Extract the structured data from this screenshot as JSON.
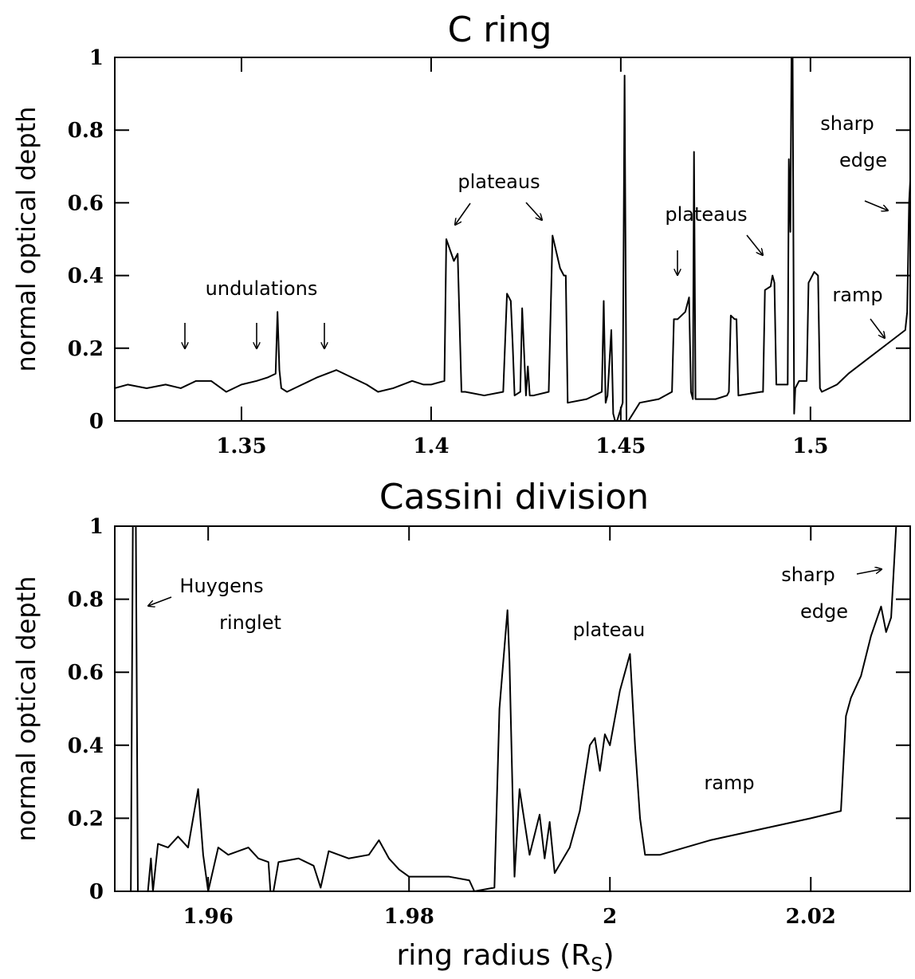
{
  "chart_data": [
    {
      "type": "line",
      "title": "C ring",
      "ylabel": "normal optical depth",
      "xlim": [
        1.3166,
        1.5263
      ],
      "ylim": [
        0,
        1
      ],
      "xticks": [
        1.35,
        1.4,
        1.45,
        1.5
      ],
      "yticks": [
        0,
        0.2,
        0.4,
        0.6,
        0.8,
        1
      ],
      "annotations": [
        "undulations",
        "plateaus",
        "plateaus",
        "ramp",
        "sharp",
        "edge"
      ],
      "series": [
        {
          "color": "#000000",
          "x": [
            1.3166,
            1.32,
            1.325,
            1.33,
            1.334,
            1.338,
            1.342,
            1.346,
            1.35,
            1.354,
            1.357,
            1.359,
            1.3595,
            1.36,
            1.3605,
            1.362,
            1.366,
            1.37,
            1.375,
            1.379,
            1.383,
            1.386,
            1.39,
            1.395,
            1.398,
            1.4,
            1.4035,
            1.404,
            1.406,
            1.407,
            1.408,
            1.409,
            1.414,
            1.419,
            1.42,
            1.421,
            1.4215,
            1.422,
            1.4235,
            1.424,
            1.425,
            1.4255,
            1.426,
            1.427,
            1.431,
            1.432,
            1.434,
            1.435,
            1.4355,
            1.436,
            1.441,
            1.445,
            1.4455,
            1.446,
            1.4465,
            1.4475,
            1.448,
            1.4485,
            1.449,
            1.4505,
            1.451,
            1.4515,
            1.452,
            1.455,
            1.46,
            1.4635,
            1.464,
            1.465,
            1.467,
            1.468,
            1.4685,
            1.469,
            1.4693,
            1.4697,
            1.47,
            1.475,
            1.478,
            1.4785,
            1.479,
            1.48,
            1.4805,
            1.481,
            1.487,
            1.4875,
            1.488,
            1.4895,
            1.49,
            1.4905,
            1.491,
            1.494,
            1.4943,
            1.4947,
            1.495,
            1.4953,
            1.4957,
            1.496,
            1.497,
            1.499,
            1.4995,
            1.5,
            1.501,
            1.502,
            1.5025,
            1.503,
            1.507,
            1.51,
            1.515,
            1.52,
            1.525,
            1.5255,
            1.526,
            1.5263
          ],
          "values": [
            0.09,
            0.1,
            0.09,
            0.1,
            0.09,
            0.11,
            0.11,
            0.08,
            0.1,
            0.11,
            0.12,
            0.13,
            0.3,
            0.14,
            0.09,
            0.08,
            0.1,
            0.12,
            0.14,
            0.12,
            0.1,
            0.08,
            0.09,
            0.11,
            0.1,
            0.1,
            0.11,
            0.5,
            0.44,
            0.46,
            0.08,
            0.08,
            0.07,
            0.08,
            0.35,
            0.33,
            0.21,
            0.07,
            0.08,
            0.31,
            0.07,
            0.15,
            0.07,
            0.07,
            0.08,
            0.51,
            0.42,
            0.4,
            0.4,
            0.05,
            0.06,
            0.08,
            0.33,
            0.05,
            0.07,
            0.25,
            0.02,
            0.0,
            0.0,
            0.05,
            0.95,
            0.0,
            0.0,
            0.05,
            0.06,
            0.08,
            0.28,
            0.28,
            0.3,
            0.34,
            0.08,
            0.06,
            0.74,
            0.06,
            0.06,
            0.06,
            0.07,
            0.08,
            0.29,
            0.28,
            0.28,
            0.07,
            0.08,
            0.08,
            0.36,
            0.37,
            0.4,
            0.38,
            0.1,
            0.1,
            0.72,
            0.52,
            1.0,
            1.0,
            0.02,
            0.09,
            0.11,
            0.11,
            0.38,
            0.39,
            0.41,
            0.4,
            0.09,
            0.08,
            0.1,
            0.13,
            0.17,
            0.21,
            0.25,
            0.3,
            0.6,
            0.66
          ]
        }
      ]
    },
    {
      "type": "line",
      "title": "Cassini division",
      "ylabel": "normal optical depth",
      "xlabel": {
        "text": "ring radius (R",
        "subscript": "S",
        "suffix": ")"
      },
      "xlim": [
        1.9507,
        2.0299
      ],
      "ylim": [
        0,
        1
      ],
      "xticks": [
        1.96,
        1.98,
        2,
        2.02
      ],
      "yticks": [
        0,
        0.2,
        0.4,
        0.6,
        0.8,
        1
      ],
      "annotations": [
        "Huygens",
        "ringlet",
        "plateau",
        "ramp",
        "sharp",
        "edge"
      ],
      "series": [
        {
          "color": "#000000",
          "x": [
            1.9507,
            1.9523,
            1.9525,
            1.9528,
            1.953,
            1.954,
            1.9543,
            1.9545,
            1.955,
            1.956,
            1.957,
            1.958,
            1.959,
            1.9595,
            1.96,
            1.961,
            1.962,
            1.964,
            1.965,
            1.966,
            1.9662,
            1.9665,
            1.967,
            1.969,
            1.9705,
            1.9712,
            1.972,
            1.974,
            1.976,
            1.977,
            1.978,
            1.979,
            1.98,
            1.984,
            1.986,
            1.9865,
            1.9885,
            1.989,
            1.9898,
            1.99,
            1.9905,
            1.991,
            1.992,
            1.993,
            1.9935,
            1.994,
            1.9945,
            1.996,
            1.997,
            1.998,
            1.9985,
            1.999,
            1.9995,
            2.0,
            2.001,
            2.002,
            2.0025,
            2.003,
            2.0035,
            2.005,
            2.01,
            2.015,
            2.02,
            2.023,
            2.0235,
            2.024,
            2.025,
            2.026,
            2.027,
            2.0275,
            2.028,
            2.0285
          ],
          "values": [
            0.0,
            0.0,
            1.0,
            1.0,
            0.0,
            0.0,
            0.09,
            0.0,
            0.13,
            0.12,
            0.15,
            0.12,
            0.28,
            0.1,
            0.0,
            0.12,
            0.1,
            0.12,
            0.09,
            0.08,
            0.0,
            0.0,
            0.08,
            0.09,
            0.07,
            0.01,
            0.11,
            0.09,
            0.1,
            0.14,
            0.09,
            0.06,
            0.04,
            0.04,
            0.03,
            0.0,
            0.01,
            0.5,
            0.77,
            0.63,
            0.04,
            0.28,
            0.1,
            0.21,
            0.09,
            0.19,
            0.05,
            0.12,
            0.22,
            0.4,
            0.42,
            0.33,
            0.43,
            0.4,
            0.55,
            0.65,
            0.4,
            0.2,
            0.1,
            0.1,
            0.14,
            0.17,
            0.2,
            0.22,
            0.48,
            0.53,
            0.59,
            0.7,
            0.78,
            0.71,
            0.75,
            1.0
          ]
        }
      ]
    }
  ]
}
